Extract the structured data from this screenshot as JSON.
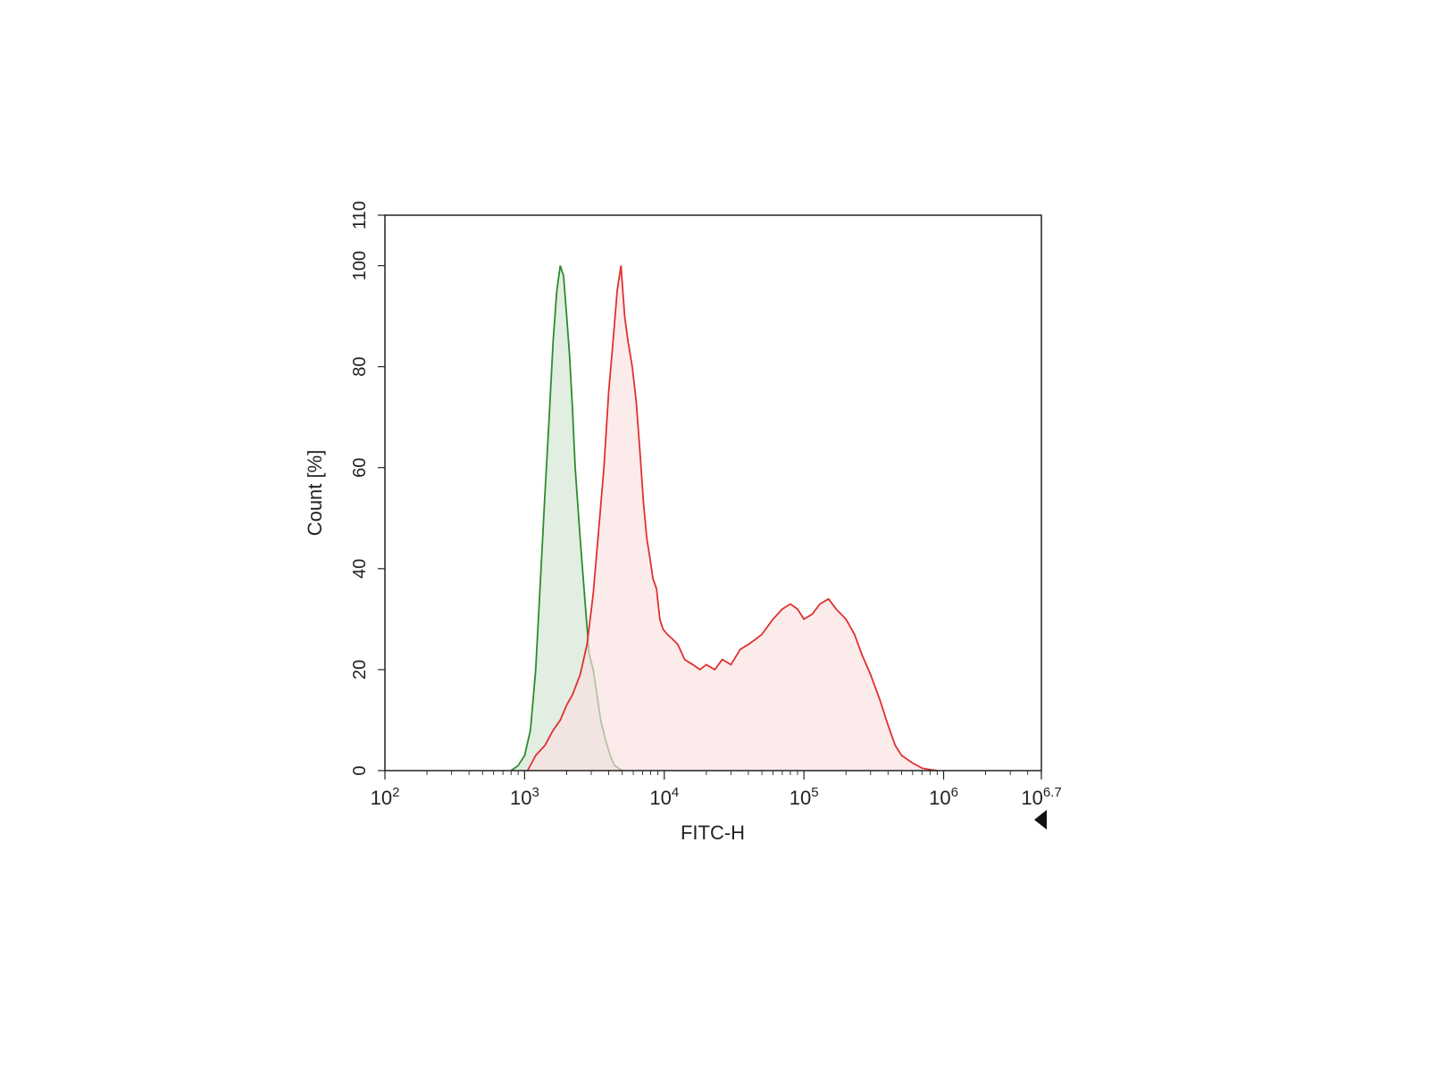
{
  "chart_data": {
    "type": "area",
    "title": "",
    "xlabel": "FITC-H",
    "ylabel": "Count [%]",
    "x_scale": "log10",
    "xlim": [
      100,
      5011872
    ],
    "ylim": [
      0,
      110
    ],
    "x_ticks": [
      {
        "base": "10",
        "exp": "2"
      },
      {
        "base": "10",
        "exp": "3"
      },
      {
        "base": "10",
        "exp": "4"
      },
      {
        "base": "10",
        "exp": "5"
      },
      {
        "base": "10",
        "exp": "6"
      },
      {
        "base": "10",
        "exp": "6.7"
      }
    ],
    "x_tick_values": [
      100,
      1000,
      10000,
      100000,
      1000000,
      5011872
    ],
    "y_ticks": [
      "0",
      "20",
      "40",
      "60",
      "80",
      "100",
      "110"
    ],
    "y_tick_values": [
      0,
      20,
      40,
      60,
      80,
      100,
      110
    ],
    "grid": false,
    "series": [
      {
        "color": "#2e8b2e",
        "fill": "#dcebdc",
        "x": [
          800,
          900,
          1000,
          1100,
          1200,
          1300,
          1400,
          1500,
          1600,
          1700,
          1800,
          1900,
          2000,
          2100,
          2200,
          2300,
          2500,
          2700,
          2900,
          3100,
          3300,
          3500,
          3800,
          4100,
          4400,
          4700,
          5000
        ],
        "y": [
          0,
          1,
          3,
          8,
          20,
          38,
          55,
          70,
          85,
          95,
          100,
          98,
          90,
          82,
          72,
          60,
          46,
          34,
          23,
          20,
          15,
          10,
          6,
          3,
          1,
          0.5,
          0
        ]
      },
      {
        "color": "#e03030",
        "fill": "#fbe0e0",
        "x": [
          1050,
          1200,
          1400,
          1600,
          1800,
          2000,
          2200,
          2500,
          2800,
          3100,
          3400,
          3700,
          4000,
          4300,
          4600,
          4900,
          5200,
          5500,
          5900,
          6300,
          6700,
          7100,
          7500,
          7900,
          8300,
          8800,
          9300,
          9800,
          10500,
          11500,
          12500,
          14000,
          16000,
          18000,
          20000,
          23000,
          26000,
          30000,
          35000,
          40000,
          45000,
          50000,
          60000,
          70000,
          80000,
          90000,
          100000,
          115000,
          130000,
          150000,
          170000,
          200000,
          230000,
          260000,
          300000,
          350000,
          400000,
          450000,
          500000,
          600000,
          700000,
          800000,
          900000
        ],
        "y": [
          0,
          3,
          5,
          8,
          10,
          13,
          15,
          19,
          25,
          35,
          48,
          60,
          75,
          85,
          95,
          100,
          90,
          85,
          80,
          73,
          63,
          53,
          46,
          42,
          38,
          36,
          30,
          28,
          27,
          26,
          25,
          22,
          21,
          20,
          21,
          20,
          22,
          21,
          24,
          25,
          26,
          27,
          30,
          32,
          33,
          32,
          30,
          31,
          33,
          34,
          32,
          30,
          27,
          23,
          19,
          14,
          9,
          5,
          3,
          1.5,
          0.5,
          0.2,
          0
        ]
      }
    ]
  }
}
